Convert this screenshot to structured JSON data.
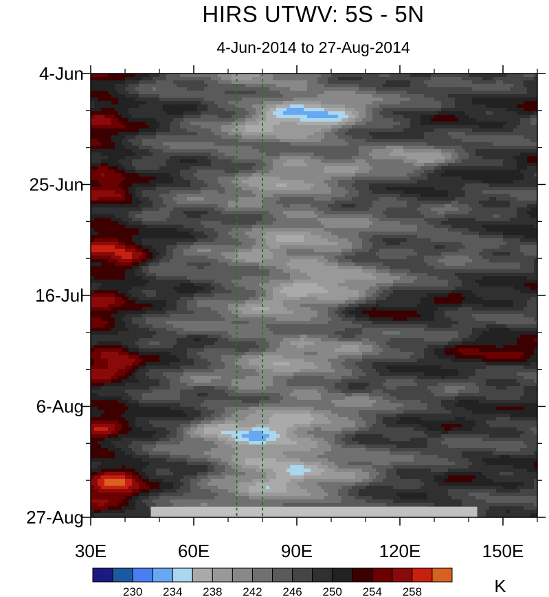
{
  "chart_data": {
    "type": "heatmap",
    "title": "HIRS UTWV: 5S - 5N",
    "subtitle": "4-Jun-2014 to 27-Aug-2014",
    "x_axis": {
      "range": [
        30,
        160
      ],
      "ticks": [
        30,
        60,
        90,
        120,
        150
      ],
      "tick_labels": [
        "30E",
        "60E",
        "90E",
        "120E",
        "150E"
      ],
      "minor_ticks": [
        40,
        50,
        70,
        80,
        100,
        110,
        130,
        140,
        160
      ]
    },
    "y_axis": {
      "range": [
        0,
        84
      ],
      "reversed": true,
      "ticks": [
        0,
        21,
        42,
        63,
        84
      ],
      "tick_labels": [
        "4-Jun",
        "25-Jun",
        "16-Jul",
        "6-Aug",
        "27-Aug"
      ],
      "minor_ticks": [
        7,
        14,
        28,
        35,
        49,
        56,
        70,
        77
      ]
    },
    "reference_lines": [
      {
        "x": 72.5,
        "color": "#1c7c1c",
        "style": "dashed"
      },
      {
        "x": 80,
        "color": "#1c7c1c",
        "style": "dashed"
      }
    ],
    "missing_data_band": {
      "x_range": [
        47.5,
        142.5
      ],
      "y_range": [
        82,
        84
      ],
      "color": "#c0c0c0"
    },
    "colorbar": {
      "unit": "K",
      "colors": [
        "#1a1a80",
        "#1b5aa0",
        "#4a7ef0",
        "#66a8f2",
        "#aad6ee",
        "#aaaaaa",
        "#999999",
        "#888888",
        "#707070",
        "#5a5a5a",
        "#454545",
        "#303030",
        "#222222",
        "#3c0000",
        "#6a0000",
        "#8a0a0a",
        "#c82010",
        "#d86020"
      ],
      "labels": [
        "230",
        "234",
        "238",
        "242",
        "246",
        "250",
        "254",
        "258"
      ],
      "label_positions": [
        2,
        4,
        6,
        8,
        10,
        12,
        14,
        16
      ]
    },
    "levels": [
      228,
      230,
      232,
      234,
      236,
      238,
      240,
      242,
      244,
      246,
      248,
      250,
      252,
      254,
      256,
      258,
      260
    ],
    "notes": "Hovmöller diagram of upper-tropospheric water vapour brightness temperature; moist (blue) features between 60E and 120E, dry (dark/red) patches near 30E-45E."
  }
}
